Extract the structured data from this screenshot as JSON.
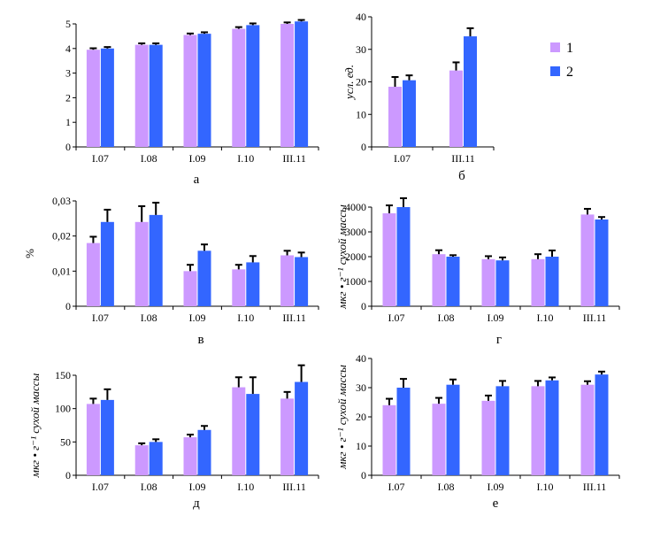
{
  "legend": [
    {
      "label": "1",
      "color": "#cc99ff"
    },
    {
      "label": "2",
      "color": "#3366ff"
    }
  ],
  "chart_data": [
    {
      "type": "bar",
      "panel_label": "а",
      "categories": [
        "I.07",
        "I.08",
        "I.09",
        "I.10",
        "III.11"
      ],
      "ylabel": "",
      "ylim": [
        0,
        5
      ],
      "yticks": [
        "0",
        "1",
        "2",
        "3",
        "4",
        "5"
      ],
      "series": [
        {
          "name": "1",
          "values": [
            3.95,
            4.15,
            4.55,
            4.8,
            5.0
          ],
          "errors": [
            0.06,
            0.06,
            0.06,
            0.07,
            0.06
          ]
        },
        {
          "name": "2",
          "values": [
            4.0,
            4.15,
            4.6,
            4.95,
            5.1
          ],
          "errors": [
            0.06,
            0.06,
            0.06,
            0.07,
            0.06
          ]
        }
      ]
    },
    {
      "type": "bar",
      "panel_label": "б",
      "categories": [
        "I.07",
        "III.11"
      ],
      "ylabel": "усл. ед.",
      "ylim": [
        0,
        40
      ],
      "yticks": [
        "0",
        "10",
        "20",
        "30",
        "40"
      ],
      "series": [
        {
          "name": "1",
          "values": [
            18.5,
            23.5
          ],
          "errors": [
            3.0,
            2.5
          ]
        },
        {
          "name": "2",
          "values": [
            20.5,
            34.0
          ],
          "errors": [
            1.5,
            2.5
          ]
        }
      ]
    },
    {
      "type": "bar",
      "panel_label": "в",
      "categories": [
        "I.07",
        "I.08",
        "I.09",
        "I.10",
        "III.11"
      ],
      "ylabel": "%",
      "ylim": [
        0,
        0.03
      ],
      "yticks": [
        "0",
        "0,01",
        "0,02",
        "0,03"
      ],
      "series": [
        {
          "name": "1",
          "values": [
            0.018,
            0.024,
            0.01,
            0.0105,
            0.0145
          ],
          "errors": [
            0.0018,
            0.0045,
            0.0018,
            0.0013,
            0.0013
          ]
        },
        {
          "name": "2",
          "values": [
            0.024,
            0.026,
            0.0158,
            0.0125,
            0.014
          ],
          "errors": [
            0.0035,
            0.0035,
            0.0018,
            0.0018,
            0.0013
          ]
        }
      ]
    },
    {
      "type": "bar",
      "panel_label": "г",
      "categories": [
        "I.07",
        "I.08",
        "I.09",
        "I.10",
        "III.11"
      ],
      "ylabel": "мкг • г⁻¹ сухой массы",
      "ylim": [
        0,
        4000
      ],
      "yticks": [
        "0",
        "1000",
        "2000",
        "3000",
        "4000"
      ],
      "series": [
        {
          "name": "1",
          "values": [
            3750,
            2100,
            1900,
            1900,
            3700
          ],
          "errors": [
            320,
            160,
            120,
            200,
            230
          ]
        },
        {
          "name": "2",
          "values": [
            4000,
            2000,
            1850,
            2000,
            3500
          ],
          "errors": [
            360,
            60,
            120,
            250,
            100
          ]
        }
      ]
    },
    {
      "type": "bar",
      "panel_label": "д",
      "categories": [
        "I.07",
        "I.08",
        "I.09",
        "I.10",
        "III.11"
      ],
      "ylabel": "мкг • г⁻¹ сухой массы",
      "ylim": [
        0,
        150
      ],
      "yticks": [
        "0",
        "50",
        "100",
        "150"
      ],
      "series": [
        {
          "name": "1",
          "values": [
            107,
            45,
            57,
            132,
            115
          ],
          "errors": [
            8,
            3,
            4,
            15,
            10
          ]
        },
        {
          "name": "2",
          "values": [
            113,
            50,
            68,
            122,
            140
          ],
          "errors": [
            16,
            4,
            6,
            25,
            25
          ]
        }
      ]
    },
    {
      "type": "bar",
      "panel_label": "е",
      "categories": [
        "I.07",
        "I.08",
        "I.09",
        "I.10",
        "III.11"
      ],
      "ylabel": "мкг • г⁻¹ сухой массы",
      "ylim": [
        0,
        40
      ],
      "yticks": [
        "0",
        "10",
        "20",
        "30",
        "40"
      ],
      "series": [
        {
          "name": "1",
          "values": [
            24,
            24.5,
            25.5,
            30.5,
            31
          ],
          "errors": [
            2.2,
            2.0,
            1.8,
            1.8,
            1.2
          ]
        },
        {
          "name": "2",
          "values": [
            30,
            31,
            30.5,
            32.5,
            34.5
          ],
          "errors": [
            3.0,
            1.8,
            1.8,
            1.0,
            1.0
          ]
        }
      ]
    }
  ]
}
